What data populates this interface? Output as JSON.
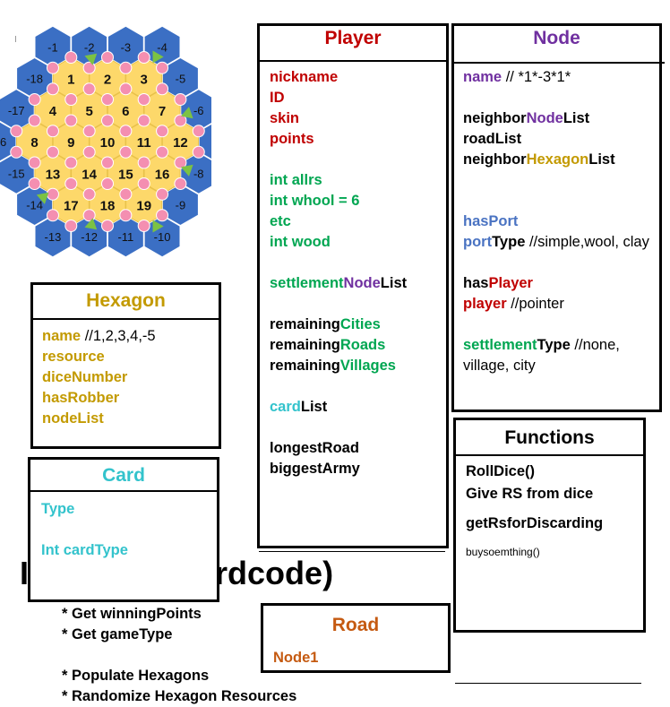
{
  "board": {
    "hexes": [
      {
        "label": "1",
        "col": 0,
        "row": 0
      },
      {
        "label": "2",
        "col": 1,
        "row": 0
      },
      {
        "label": "3",
        "col": 2,
        "row": 0
      },
      {
        "label": "4",
        "col": 0,
        "row": 1
      },
      {
        "label": "5",
        "col": 1,
        "row": 1
      },
      {
        "label": "6",
        "col": 2,
        "row": 1
      },
      {
        "label": "7",
        "col": 3,
        "row": 1
      },
      {
        "label": "8",
        "col": 0,
        "row": 2
      },
      {
        "label": "9",
        "col": 1,
        "row": 2
      },
      {
        "label": "10",
        "col": 2,
        "row": 2
      },
      {
        "label": "11",
        "col": 3,
        "row": 2
      },
      {
        "label": "12",
        "col": 4,
        "row": 2
      },
      {
        "label": "13",
        "col": 0,
        "row": 3
      },
      {
        "label": "14",
        "col": 1,
        "row": 3
      },
      {
        "label": "15",
        "col": 2,
        "row": 3
      },
      {
        "label": "16",
        "col": 3,
        "row": 3
      },
      {
        "label": "17",
        "col": 0,
        "row": 4
      },
      {
        "label": "18",
        "col": 1,
        "row": 4
      },
      {
        "label": "19",
        "col": 2,
        "row": 4
      }
    ],
    "sea_labels": [
      "-1",
      "-2",
      "-3",
      "-4",
      "-5",
      "-6",
      "-7",
      "-8",
      "-9",
      "-10",
      "-11",
      "-12",
      "-13",
      "-14",
      "-15",
      "-16",
      "-17",
      "-18"
    ],
    "node_count": 54,
    "colors": {
      "land": "#fdd86a",
      "sea": "#3b6fc4",
      "node": "#f48fb1",
      "port": "#7cc243"
    }
  },
  "player": {
    "title": "Player",
    "lines": [
      [
        {
          "t": "nickname",
          "c": "red"
        }
      ],
      [
        {
          "t": "ID",
          "c": "red"
        }
      ],
      [
        {
          "t": "skin",
          "c": "red"
        }
      ],
      [
        {
          "t": "points",
          "c": "red"
        }
      ],
      [],
      [
        {
          "t": "int allrs",
          "c": "green"
        }
      ],
      [
        {
          "t": "int whool = 6",
          "c": "green"
        }
      ],
      [
        {
          "t": "etc",
          "c": "green"
        }
      ],
      [
        {
          "t": "int wood",
          "c": "green"
        }
      ],
      [],
      [
        {
          "t": "settlement",
          "c": "green"
        },
        {
          "t": "Node",
          "c": "purple"
        },
        {
          "t": "List",
          "c": "black"
        }
      ],
      [],
      [
        {
          "t": "remaining",
          "c": "black"
        },
        {
          "t": "Cities",
          "c": "green"
        }
      ],
      [
        {
          "t": "remaining",
          "c": "black"
        },
        {
          "t": "Roads",
          "c": "green"
        }
      ],
      [
        {
          "t": "remaining",
          "c": "black"
        },
        {
          "t": "Villages",
          "c": "green"
        }
      ],
      [],
      [
        {
          "t": "card",
          "c": "cyan"
        },
        {
          "t": "List",
          "c": "black"
        }
      ],
      [],
      [
        {
          "t": "longestRoad",
          "c": "black"
        }
      ],
      [
        {
          "t": "biggestArmy",
          "c": "black"
        }
      ]
    ]
  },
  "node": {
    "title": "Node",
    "lines": [
      [
        {
          "t": "name",
          "c": "purple"
        },
        {
          "t": " // *1*-3*1*",
          "c": "black",
          "n": true
        }
      ],
      [],
      [
        {
          "t": "neighbor",
          "c": "black"
        },
        {
          "t": "Node",
          "c": "purple"
        },
        {
          "t": "List",
          "c": "black"
        }
      ],
      [
        {
          "t": "roadList",
          "c": "black"
        }
      ],
      [
        {
          "t": "neighbor",
          "c": "black"
        },
        {
          "t": "Hexagon",
          "c": "gold"
        },
        {
          "t": "List",
          "c": "black"
        }
      ],
      [],
      [],
      [
        {
          "t": "hasPort",
          "c": "blue"
        }
      ],
      [
        {
          "t": "port",
          "c": "blue"
        },
        {
          "t": "Type",
          "c": "black"
        },
        {
          "t": " //simple,wool, clay",
          "c": "black",
          "n": true
        }
      ],
      [],
      [
        {
          "t": "has",
          "c": "black"
        },
        {
          "t": "Player",
          "c": "red"
        }
      ],
      [
        {
          "t": "player",
          "c": "red"
        },
        {
          "t": " //pointer",
          "c": "black",
          "n": true
        }
      ],
      [],
      [
        {
          "t": "settlement",
          "c": "green"
        },
        {
          "t": "Type",
          "c": "black"
        },
        {
          "t": " //none, village, city",
          "c": "black",
          "n": true
        }
      ]
    ]
  },
  "hexagon": {
    "title": "Hexagon",
    "lines": [
      [
        {
          "t": "name",
          "c": "gold"
        },
        {
          "t": " //1,2,3,4,-5",
          "c": "black",
          "n": true
        }
      ],
      [
        {
          "t": "resource",
          "c": "gold"
        }
      ],
      [
        {
          "t": "diceNumber",
          "c": "gold"
        }
      ],
      [
        {
          "t": "hasRobber",
          "c": "gold"
        }
      ],
      [
        {
          "t": "nodeList",
          "c": "gold"
        }
      ]
    ]
  },
  "card": {
    "title": "Card",
    "lines": [
      [
        {
          "t": "Type",
          "c": "cyan"
        }
      ],
      [],
      [
        {
          "t": "Int cardType",
          "c": "cyan"
        }
      ]
    ]
  },
  "functions": {
    "title": "Functions",
    "items": [
      "RollDice()",
      "Give RS from dice",
      "getRsforDiscarding",
      "buysoemthing()"
    ]
  },
  "road": {
    "title": "Road",
    "lines": [
      [
        {
          "t": "Node1",
          "c": "orange"
        }
      ]
    ]
  },
  "background": {
    "heading": "Init Game(hardcode)",
    "steps": [
      "* Get winningPoints",
      "* Get gameType",
      "",
      "* Populate Hexagons",
      "* Randomize Hexagon Resources"
    ]
  },
  "palette": {
    "red": "#c00000",
    "green": "#00a651",
    "gold": "#c39a00",
    "purple": "#7030a0",
    "blue": "#4a73c2",
    "cyan": "#33c3cc",
    "orange": "#c55a11",
    "black": "#000000"
  }
}
